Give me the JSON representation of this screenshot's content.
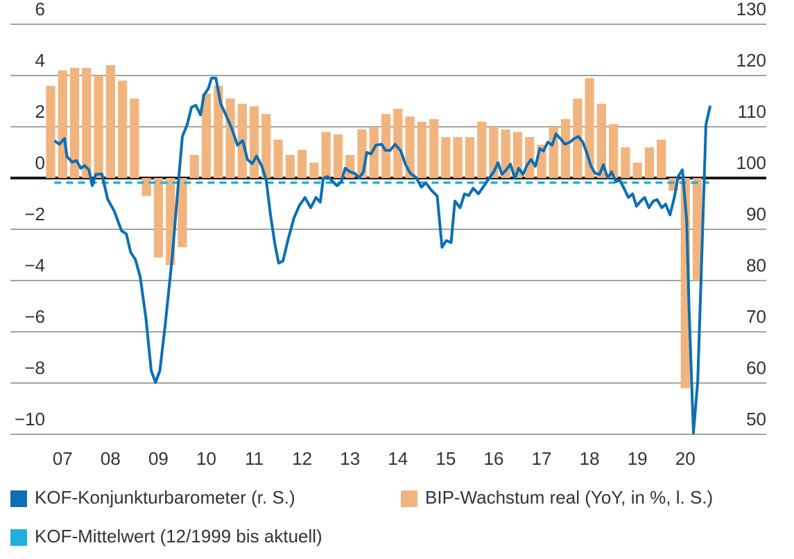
{
  "chart_data": {
    "type": "combo",
    "xlim": [
      2006.41,
      2022.19
    ],
    "xticks": [
      {
        "value": 2007.5,
        "label": "07"
      },
      {
        "value": 2008.5,
        "label": "08"
      },
      {
        "value": 2009.5,
        "label": "09"
      },
      {
        "value": 2010.5,
        "label": "10"
      },
      {
        "value": 2011.5,
        "label": "11"
      },
      {
        "value": 2012.5,
        "label": "12"
      },
      {
        "value": 2013.5,
        "label": "13"
      },
      {
        "value": 2014.5,
        "label": "14"
      },
      {
        "value": 2015.5,
        "label": "15"
      },
      {
        "value": 2016.5,
        "label": "16"
      },
      {
        "value": 2017.5,
        "label": "17"
      },
      {
        "value": 2018.5,
        "label": "18"
      },
      {
        "value": 2019.5,
        "label": "19"
      },
      {
        "value": 2020.5,
        "label": "20"
      }
    ],
    "ylim": [
      -10,
      6
    ],
    "yticks": [
      6,
      4,
      2,
      0,
      {
        "value": -2,
        "label": "−2"
      },
      {
        "value": -4,
        "label": "−4"
      },
      {
        "value": -6,
        "label": "−6"
      },
      {
        "value": -8,
        "label": "−8"
      },
      {
        "value": -10,
        "label": "−10"
      }
    ],
    "y2lim": [
      50,
      130
    ],
    "y2ticks": [
      130,
      120,
      110,
      100,
      90,
      80,
      70,
      60,
      50
    ],
    "grid": true,
    "series": [
      {
        "name": "KOF-Konjunkturbarometer (r. S.)",
        "type": "line",
        "axis": "y2",
        "color": "#0b6fb4",
        "x": [
          2007.33,
          2007.43,
          2007.54,
          2007.59,
          2007.7,
          2007.79,
          2007.88,
          2007.96,
          2008.05,
          2008.12,
          2008.19,
          2008.32,
          2008.44,
          2008.58,
          2008.73,
          2008.83,
          2008.92,
          2009.02,
          2009.12,
          2009.24,
          2009.35,
          2009.44,
          2009.53,
          2009.64,
          2009.79,
          2009.92,
          2010.0,
          2010.1,
          2010.19,
          2010.28,
          2010.38,
          2010.45,
          2010.54,
          2010.61,
          2010.7,
          2010.8,
          2010.91,
          2011.03,
          2011.15,
          2011.26,
          2011.36,
          2011.46,
          2011.55,
          2011.66,
          2011.75,
          2011.84,
          2011.93,
          2012.01,
          2012.1,
          2012.21,
          2012.33,
          2012.44,
          2012.56,
          2012.68,
          2012.79,
          2012.88,
          2012.94,
          2013.03,
          2013.14,
          2013.23,
          2013.32,
          2013.4,
          2013.5,
          2013.6,
          2013.69,
          2013.78,
          2013.85,
          2013.94,
          2014.04,
          2014.16,
          2014.24,
          2014.34,
          2014.44,
          2014.56,
          2014.66,
          2014.76,
          2014.88,
          2014.99,
          2015.08,
          2015.2,
          2015.32,
          2015.42,
          2015.51,
          2015.61,
          2015.69,
          2015.8,
          2015.89,
          2015.98,
          2016.07,
          2016.18,
          2016.3,
          2016.4,
          2016.5,
          2016.59,
          2016.67,
          2016.76,
          2016.85,
          2016.94,
          2017.02,
          2017.11,
          2017.2,
          2017.28,
          2017.37,
          2017.46,
          2017.54,
          2017.63,
          2017.72,
          2017.8,
          2017.89,
          2017.99,
          2018.09,
          2018.18,
          2018.27,
          2018.36,
          2018.44,
          2018.53,
          2018.62,
          2018.71,
          2018.79,
          2018.88,
          2018.96,
          2019.05,
          2019.13,
          2019.22,
          2019.31,
          2019.4,
          2019.48,
          2019.57,
          2019.65,
          2019.74,
          2019.83,
          2019.91,
          2020.01,
          2020.09,
          2020.18,
          2020.27,
          2020.35,
          2020.44,
          2020.53,
          2020.58,
          2020.67,
          2020.76,
          2020.84,
          2020.93,
          2021.02
        ],
        "values": [
          107.3,
          106.6,
          107.7,
          104.2,
          103.1,
          103.4,
          101.9,
          102.4,
          101.6,
          98.5,
          100.7,
          100.8,
          95.9,
          93.5,
          89.7,
          89.1,
          85.5,
          84.1,
          80.7,
          72.6,
          62.4,
          60.1,
          62.4,
          71.2,
          84.7,
          99.6,
          108.1,
          110.4,
          113.8,
          114.2,
          112.3,
          116.2,
          117.4,
          119.5,
          119.5,
          114.5,
          112.3,
          109.7,
          106.4,
          107.3,
          103.6,
          102.8,
          104.3,
          102.3,
          99.6,
          92.8,
          87.2,
          83.4,
          83.8,
          88.1,
          92.2,
          94.6,
          96.2,
          94.2,
          96.2,
          95.3,
          99.9,
          100.3,
          99.3,
          98.5,
          99.3,
          101.9,
          101.2,
          100.9,
          100.0,
          101.2,
          105.0,
          104.7,
          106.4,
          106.6,
          105.4,
          105.4,
          106.6,
          105.3,
          102.6,
          100.9,
          100.1,
          98.2,
          99.1,
          97.6,
          96.5,
          86.5,
          87.8,
          87.4,
          95.5,
          94.2,
          96.9,
          96.6,
          98.0,
          96.9,
          98.5,
          99.9,
          101.2,
          103.0,
          100.7,
          101.6,
          102.7,
          99.9,
          101.9,
          100.7,
          102.6,
          103.6,
          102.3,
          105.7,
          105.3,
          107.0,
          106.4,
          108.6,
          107.7,
          106.6,
          107.0,
          107.7,
          108.1,
          107.0,
          105.0,
          102.3,
          100.9,
          100.7,
          102.6,
          100.0,
          101.2,
          99.3,
          99.6,
          98.0,
          96.2,
          96.9,
          94.5,
          95.5,
          96.2,
          94.2,
          95.5,
          95.8,
          94.2,
          94.9,
          92.8,
          96.2,
          100.3,
          101.6,
          91.5,
          73.9,
          50.3,
          60.4,
          83.4,
          110.4,
          114.1
        ]
      },
      {
        "name": "BIP-Wachstum real (YoY, in %, l. S.)",
        "type": "bar",
        "color": "#f2b47e",
        "x": [
          2007.25,
          2007.5,
          2007.75,
          2008.0,
          2008.25,
          2008.5,
          2008.75,
          2009.0,
          2009.25,
          2009.5,
          2009.75,
          2010.0,
          2010.25,
          2010.5,
          2010.75,
          2011.0,
          2011.25,
          2011.5,
          2011.75,
          2012.0,
          2012.25,
          2012.5,
          2012.75,
          2013.0,
          2013.25,
          2013.5,
          2013.75,
          2014.0,
          2014.25,
          2014.5,
          2014.75,
          2015.0,
          2015.25,
          2015.5,
          2015.75,
          2016.0,
          2016.25,
          2016.5,
          2016.75,
          2017.0,
          2017.25,
          2017.5,
          2017.75,
          2018.0,
          2018.25,
          2018.5,
          2018.75,
          2019.0,
          2019.25,
          2019.5,
          2019.75,
          2020.0,
          2020.25,
          2020.5,
          2020.75
        ],
        "values": [
          3.6,
          4.2,
          4.3,
          4.3,
          4.0,
          4.4,
          3.8,
          3.1,
          -0.7,
          -3.1,
          -3.4,
          -2.7,
          0.9,
          3.3,
          3.6,
          3.1,
          2.9,
          2.8,
          2.5,
          1.5,
          0.9,
          1.1,
          0.6,
          1.8,
          1.7,
          0.9,
          1.9,
          2.0,
          2.5,
          2.7,
          2.4,
          2.2,
          2.3,
          1.6,
          1.6,
          1.6,
          2.2,
          2.0,
          1.9,
          1.8,
          1.6,
          1.3,
          2.0,
          2.3,
          3.1,
          3.9,
          2.9,
          2.1,
          1.2,
          0.6,
          1.2,
          1.5,
          -0.5,
          -8.2,
          -4.0
        ]
      },
      {
        "name": "KOF-Mittelwert (12/1999 bis aktuell)",
        "type": "line",
        "axis": "y2",
        "color": "#1fb1dd",
        "dashed": true,
        "x": [
          2007.33,
          2021.0
        ],
        "values": [
          99.1,
          99.1
        ]
      }
    ]
  }
}
